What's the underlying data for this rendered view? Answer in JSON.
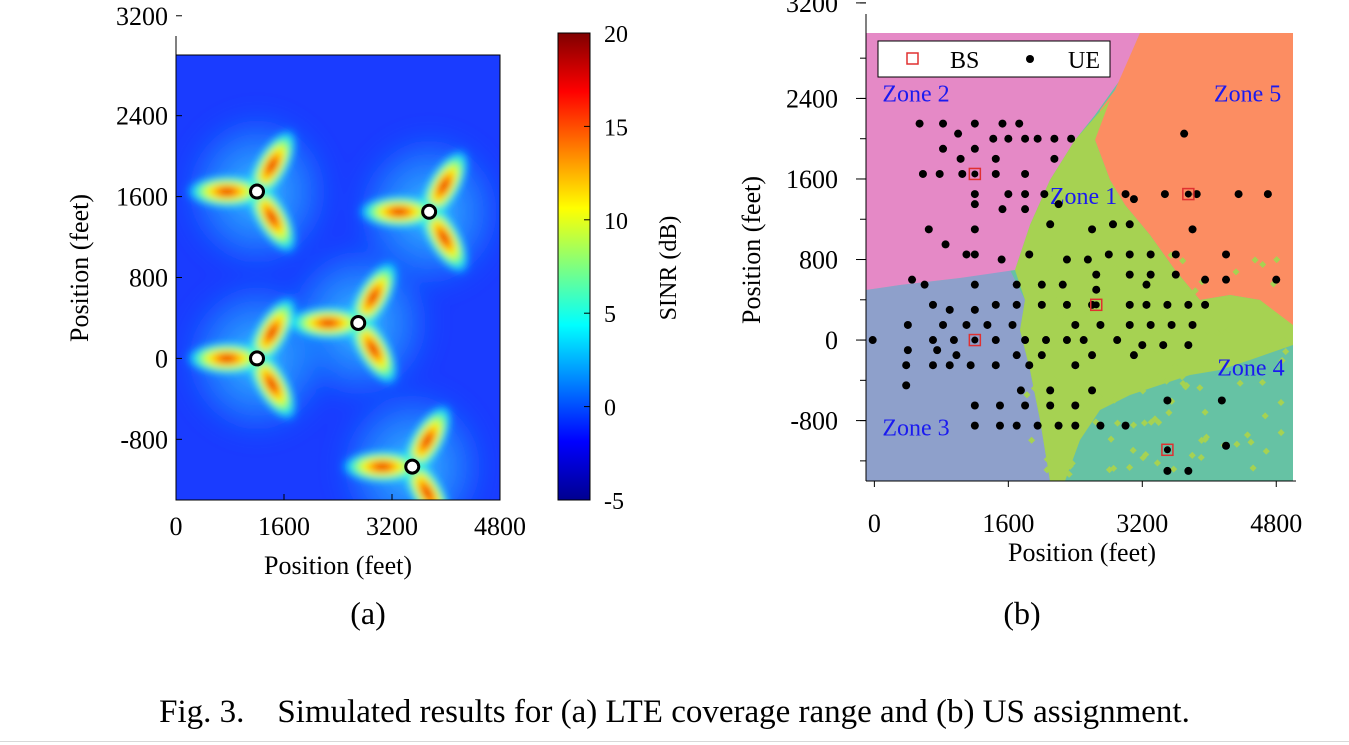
{
  "chart_data": [
    {
      "type": "heatmap",
      "panel_label": "(a)",
      "xlabel": "Position (feet)",
      "ylabel": "Position (feet)",
      "xlim": [
        0,
        4800
      ],
      "ylim": [
        -1400,
        3200
      ],
      "xticks": [
        "0",
        "1600",
        "3200",
        "4800"
      ],
      "xtick_values": [
        0,
        1600,
        3200,
        4800
      ],
      "yticks": [
        "3200",
        "2400",
        "1600",
        "800",
        "0",
        "-800"
      ],
      "ytick_values": [
        3200,
        2400,
        1600,
        800,
        0,
        -800
      ],
      "colorbar_label": "SINR (dB)",
      "colorbar_range": [
        -5,
        20
      ],
      "colorbar_ticks": [
        "20",
        "15",
        "10",
        "5",
        "0",
        "-5"
      ],
      "colorbar_tick_values": [
        20,
        15,
        10,
        5,
        0,
        -5
      ],
      "data_top": 3000,
      "base_stations": [
        {
          "x": 1200,
          "y": 1650
        },
        {
          "x": 3750,
          "y": 1450
        },
        {
          "x": 2700,
          "y": 350
        },
        {
          "x": 1200,
          "y": 0
        },
        {
          "x": 3500,
          "y": -1070
        }
      ]
    },
    {
      "type": "scatter",
      "panel_label": "(b)",
      "xlabel": "Position (feet)",
      "ylabel": "Position (feet)",
      "xlim": [
        -100,
        5000
      ],
      "ylim": [
        -1400,
        3200
      ],
      "xticks": [
        "0",
        "1600",
        "3200",
        "4800"
      ],
      "xtick_values": [
        0,
        1600,
        3200,
        4800
      ],
      "yticks": [
        "3200",
        "2400",
        "1600",
        "800",
        "0",
        "-800"
      ],
      "ytick_values": [
        3200,
        2400,
        1600,
        800,
        0,
        -800
      ],
      "data_top": 3050,
      "legend": {
        "position": "top-left",
        "entries": [
          "BS",
          "UE"
        ]
      },
      "colors": {
        "BS": "#e03030",
        "UE": "#000000",
        "zone_label": "#1a1af0"
      },
      "zones": [
        {
          "label": "Zone 1",
          "color": "#a6d252",
          "label_x": 2000,
          "label_y": 1350
        },
        {
          "label": "Zone 2",
          "color": "#e589c6",
          "label_x": 0,
          "label_y": 2370
        },
        {
          "label": "Zone 3",
          "color": "#8ea0cb",
          "label_x": 0,
          "label_y": -950
        },
        {
          "label": "Zone 4",
          "color": "#66c2a4",
          "label_x": 4000,
          "label_y": -350
        },
        {
          "label": "Zone 5",
          "color": "#fc8d62",
          "label_x": 3960,
          "label_y": 2370
        }
      ],
      "series": [
        {
          "name": "BS",
          "points": [
            [
              1200,
              1650
            ],
            [
              3750,
              1450
            ],
            [
              2650,
              350
            ],
            [
              1200,
              0
            ],
            [
              3500,
              -1090
            ]
          ]
        },
        {
          "name": "UE",
          "points": [
            [
              540,
              2150
            ],
            [
              820,
              2150
            ],
            [
              1200,
              2150
            ],
            [
              1530,
              2150
            ],
            [
              1730,
              2150
            ],
            [
              1000,
              2050
            ],
            [
              1420,
              2000
            ],
            [
              1600,
              2000
            ],
            [
              1800,
              2000
            ],
            [
              1950,
              2000
            ],
            [
              2150,
              2000
            ],
            [
              2350,
              2000
            ],
            [
              3700,
              2050
            ],
            [
              820,
              1900
            ],
            [
              1200,
              1900
            ],
            [
              1030,
              1800
            ],
            [
              1450,
              1800
            ],
            [
              2150,
              1800
            ],
            [
              580,
              1650
            ],
            [
              780,
              1650
            ],
            [
              1050,
              1650
            ],
            [
              1450,
              1650
            ],
            [
              1800,
              1650
            ],
            [
              1200,
              1450
            ],
            [
              1600,
              1450
            ],
            [
              1800,
              1450
            ],
            [
              2030,
              1450
            ],
            [
              3000,
              1450
            ],
            [
              3470,
              1450
            ],
            [
              3850,
              1450
            ],
            [
              4350,
              1450
            ],
            [
              4700,
              1450
            ],
            [
              1200,
              1350
            ],
            [
              1530,
              1300
            ],
            [
              1800,
              1300
            ],
            [
              2200,
              1350
            ],
            [
              3100,
              1400
            ],
            [
              650,
              1100
            ],
            [
              1200,
              1100
            ],
            [
              2100,
              1150
            ],
            [
              2600,
              1100
            ],
            [
              2850,
              1150
            ],
            [
              3050,
              1150
            ],
            [
              3800,
              1100
            ],
            [
              850,
              950
            ],
            [
              1200,
              850
            ],
            [
              1520,
              800
            ],
            [
              1850,
              850
            ],
            [
              2300,
              800
            ],
            [
              2550,
              800
            ],
            [
              2800,
              850
            ],
            [
              3050,
              850
            ],
            [
              3300,
              850
            ],
            [
              3600,
              850
            ],
            [
              4200,
              850
            ],
            [
              1100,
              850
            ],
            [
              2650,
              650
            ],
            [
              3050,
              650
            ],
            [
              3300,
              650
            ],
            [
              3600,
              650
            ],
            [
              3950,
              600
            ],
            [
              4200,
              600
            ],
            [
              4800,
              600
            ],
            [
              450,
              600
            ],
            [
              600,
              550
            ],
            [
              1200,
              550
            ],
            [
              1700,
              550
            ],
            [
              2000,
              550
            ],
            [
              2250,
              550
            ],
            [
              2650,
              500
            ],
            [
              3250,
              550
            ],
            [
              700,
              350
            ],
            [
              900,
              300
            ],
            [
              1200,
              300
            ],
            [
              1450,
              350
            ],
            [
              1700,
              350
            ],
            [
              2000,
              350
            ],
            [
              2300,
              350
            ],
            [
              2600,
              350
            ],
            [
              3050,
              350
            ],
            [
              3250,
              350
            ],
            [
              3500,
              350
            ],
            [
              3750,
              350
            ],
            [
              3950,
              350
            ],
            [
              400,
              150
            ],
            [
              820,
              150
            ],
            [
              1100,
              150
            ],
            [
              1350,
              150
            ],
            [
              1650,
              150
            ],
            [
              2400,
              150
            ],
            [
              2700,
              150
            ],
            [
              3050,
              150
            ],
            [
              3300,
              150
            ],
            [
              3550,
              150
            ],
            [
              3800,
              150
            ],
            [
              -20,
              0
            ],
            [
              700,
              0
            ],
            [
              950,
              0
            ],
            [
              1450,
              0
            ],
            [
              1800,
              0
            ],
            [
              2050,
              0
            ],
            [
              2300,
              0
            ],
            [
              2500,
              0
            ],
            [
              2900,
              0
            ],
            [
              3200,
              -50
            ],
            [
              3450,
              -50
            ],
            [
              3750,
              -50
            ],
            [
              400,
              -100
            ],
            [
              750,
              -100
            ],
            [
              980,
              -150
            ],
            [
              1700,
              -150
            ],
            [
              2000,
              -150
            ],
            [
              2600,
              -150
            ],
            [
              3100,
              -150
            ],
            [
              380,
              -250
            ],
            [
              700,
              -250
            ],
            [
              900,
              -250
            ],
            [
              1150,
              -250
            ],
            [
              1450,
              -250
            ],
            [
              1850,
              -250
            ],
            [
              2400,
              -250
            ],
            [
              380,
              -450
            ],
            [
              1750,
              -500
            ],
            [
              2100,
              -500
            ],
            [
              2600,
              -500
            ],
            [
              1200,
              -650
            ],
            [
              1500,
              -650
            ],
            [
              1800,
              -650
            ],
            [
              2100,
              -650
            ],
            [
              2400,
              -650
            ],
            [
              1700,
              -850
            ],
            [
              1950,
              -850
            ],
            [
              2200,
              -850
            ],
            [
              2400,
              -850
            ],
            [
              2700,
              -850
            ],
            [
              1200,
              -850
            ],
            [
              1500,
              -850
            ],
            [
              3500,
              -600
            ],
            [
              4150,
              -600
            ],
            [
              3000,
              -850
            ],
            [
              3500,
              -1300
            ],
            [
              3750,
              -1300
            ],
            [
              4200,
              -1050
            ]
          ]
        }
      ]
    }
  ],
  "caption": {
    "prefix": "Fig. 3.",
    "text": "Simulated results for (a) LTE coverage range and (b) US assignment."
  }
}
